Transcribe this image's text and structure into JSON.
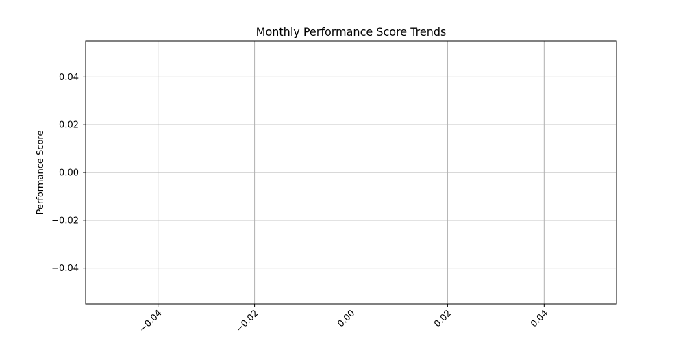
{
  "chart_data": {
    "type": "line",
    "title": "Monthly Performance Score Trends",
    "xlabel": "",
    "ylabel": "Performance Score",
    "xlim": [
      -0.055,
      0.055
    ],
    "ylim": [
      -0.055,
      0.055
    ],
    "x_ticks": [
      -0.04,
      -0.02,
      0.0,
      0.02,
      0.04
    ],
    "x_tick_labels": [
      "−0.04",
      "−0.02",
      "0.00",
      "0.02",
      "0.04"
    ],
    "y_ticks": [
      0.04,
      0.02,
      0.0,
      -0.02,
      -0.04
    ],
    "y_tick_labels": [
      "0.04",
      "0.02",
      "0.00",
      "−0.02",
      "−0.04"
    ],
    "x_tick_rotation_deg": 45,
    "grid": true,
    "grid_color": "#b0b0b0",
    "series": []
  }
}
